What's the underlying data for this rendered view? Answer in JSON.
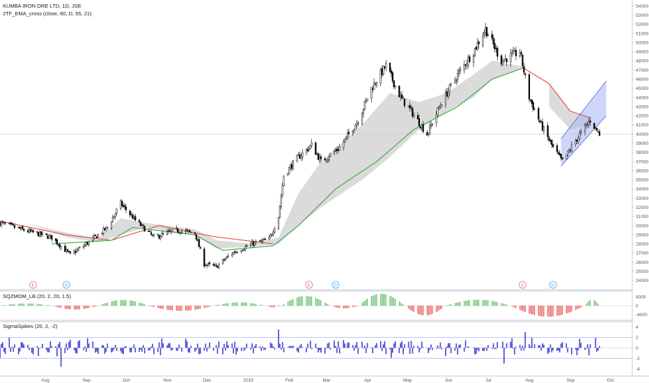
{
  "main_pane": {
    "symbol_title": "KUMBA IRON ORE LTD, 1D, JSE",
    "indicator_title": "2TF_EMA_cross (close, 60, D, 55, 21)"
  },
  "squeeze_pane": {
    "title": "SQZMOM_LB (20, 2, 20, 1.5)"
  },
  "sigma_pane": {
    "title": "SigmaSpikes (20, 2, -2)"
  },
  "colors": {
    "up_candle": "#ffffff",
    "down_candle": "#000000",
    "fast_ema": "#4caf50",
    "slow_ema": "#e53935",
    "ema_fill": "#c8c8c8",
    "channel_fill": "#aab4f5",
    "channel_line": "#5460e6",
    "sqz_up": "#4caf50",
    "sqz_down": "#e53935",
    "spikes": "#3f3fd0",
    "marker_e": "#e57373",
    "marker_d": "#42a5f5"
  },
  "chart_data": [
    {
      "type": "candlestick",
      "pane": "price",
      "y_axis_ticks": [
        24000,
        25000,
        26000,
        27000,
        28000,
        29000,
        30000,
        31000,
        32000,
        33000,
        34000,
        35000,
        36000,
        37000,
        38000,
        39000,
        40000,
        41000,
        42000,
        43000,
        44000,
        45000,
        46000,
        47000,
        48000,
        49000,
        50000,
        51000,
        52000,
        53000,
        54000
      ],
      "ylim": [
        23000,
        54500
      ],
      "x_axis_labels": [
        "Aug",
        "Sep",
        "Oct",
        "Nov",
        "Dec",
        "2019",
        "Feb",
        "Mar",
        "Apr",
        "May",
        "Jun",
        "Jul",
        "Aug",
        "Sep",
        "Oct"
      ],
      "x_axis_label_dates": [
        "2018-08-01",
        "2018-09-01",
        "2018-10-01",
        "2018-11-01",
        "2018-12-01",
        "2019-01-01",
        "2019-02-01",
        "2019-03-01",
        "2019-04-01",
        "2019-05-01",
        "2019-06-01",
        "2019-07-01",
        "2019-08-01",
        "2019-09-01",
        "2019-10-01"
      ],
      "horizontal_line": 40000,
      "price_path": [
        {
          "date": "2018-07-02",
          "close": 30300
        },
        {
          "date": "2018-07-20",
          "close": 29500
        },
        {
          "date": "2018-08-10",
          "close": 28700
        },
        {
          "date": "2018-08-24",
          "close": 26800
        },
        {
          "date": "2018-09-07",
          "close": 28200
        },
        {
          "date": "2018-09-21",
          "close": 29800
        },
        {
          "date": "2018-10-01",
          "close": 32400
        },
        {
          "date": "2018-10-12",
          "close": 30600
        },
        {
          "date": "2018-10-26",
          "close": 28700
        },
        {
          "date": "2018-11-12",
          "close": 29500
        },
        {
          "date": "2018-11-26",
          "close": 29200
        },
        {
          "date": "2018-12-03",
          "close": 25800
        },
        {
          "date": "2018-12-12",
          "close": 25500
        },
        {
          "date": "2018-12-24",
          "close": 27000
        },
        {
          "date": "2019-01-08",
          "close": 28000
        },
        {
          "date": "2019-01-21",
          "close": 28500
        },
        {
          "date": "2019-01-28",
          "close": 31000
        },
        {
          "date": "2019-02-01",
          "close": 35500
        },
        {
          "date": "2019-02-12",
          "close": 37500
        },
        {
          "date": "2019-02-22",
          "close": 38800
        },
        {
          "date": "2019-03-01",
          "close": 37000
        },
        {
          "date": "2019-03-15",
          "close": 38500
        },
        {
          "date": "2019-03-29",
          "close": 41500
        },
        {
          "date": "2019-04-08",
          "close": 45000
        },
        {
          "date": "2019-04-19",
          "close": 47500
        },
        {
          "date": "2019-04-30",
          "close": 44000
        },
        {
          "date": "2019-05-08",
          "close": 42500
        },
        {
          "date": "2019-05-20",
          "close": 40000
        },
        {
          "date": "2019-05-31",
          "close": 43500
        },
        {
          "date": "2019-06-12",
          "close": 46500
        },
        {
          "date": "2019-06-24",
          "close": 49000
        },
        {
          "date": "2019-07-03",
          "close": 51500
        },
        {
          "date": "2019-07-15",
          "close": 48000
        },
        {
          "date": "2019-07-29",
          "close": 49000
        },
        {
          "date": "2019-08-05",
          "close": 44000
        },
        {
          "date": "2019-08-14",
          "close": 41000
        },
        {
          "date": "2019-08-23",
          "close": 38500
        },
        {
          "date": "2019-08-30",
          "close": 37000
        },
        {
          "date": "2019-09-10",
          "close": 39500
        },
        {
          "date": "2019-09-20",
          "close": 41500
        },
        {
          "date": "2019-09-27",
          "close": 40000
        }
      ],
      "fast_ema_path": [
        {
          "date": "2018-08-10",
          "value": 28000
        },
        {
          "date": "2018-09-24",
          "value": 28400
        },
        {
          "date": "2018-10-10",
          "value": 29800
        },
        {
          "date": "2018-11-26",
          "value": 29000
        },
        {
          "date": "2018-12-17",
          "value": 27300
        },
        {
          "date": "2019-01-24",
          "value": 27800
        },
        {
          "date": "2019-02-12",
          "value": 30000
        },
        {
          "date": "2019-03-12",
          "value": 34000
        },
        {
          "date": "2019-04-12",
          "value": 37000
        },
        {
          "date": "2019-05-10",
          "value": 40500
        },
        {
          "date": "2019-06-12",
          "value": 43000
        },
        {
          "date": "2019-07-08",
          "value": 46000
        },
        {
          "date": "2019-07-31",
          "value": 47200
        }
      ],
      "slow_ema_path": [
        {
          "date": "2018-07-02",
          "value": 30500
        },
        {
          "date": "2018-08-20",
          "value": 29000
        },
        {
          "date": "2018-09-24",
          "value": 28400
        },
        {
          "date": "2018-10-30",
          "value": 30000
        },
        {
          "date": "2018-12-10",
          "value": 28800
        },
        {
          "date": "2019-01-24",
          "value": 28000
        },
        {
          "date": "2019-08-01",
          "value": 47200
        },
        {
          "date": "2019-08-20",
          "value": 45500
        },
        {
          "date": "2019-09-05",
          "value": 42500
        },
        {
          "date": "2019-09-20",
          "value": 41800
        }
      ],
      "ema_fill_bands": [
        {
          "upper": [
            {
              "date": "2018-07-23",
              "value": 30200
            },
            {
              "date": "2018-08-22",
              "value": 29200
            },
            {
              "date": "2018-09-14",
              "value": 28600
            },
            {
              "date": "2018-10-01",
              "value": 30800
            },
            {
              "date": "2018-10-20",
              "value": 30300
            },
            {
              "date": "2018-11-26",
              "value": 29600
            },
            {
              "date": "2018-12-12",
              "value": 28400
            },
            {
              "date": "2019-01-08",
              "value": 28000
            },
            {
              "date": "2019-01-28",
              "value": 28700
            },
            {
              "date": "2019-02-12",
              "value": 33500
            },
            {
              "date": "2019-03-01",
              "value": 37000
            },
            {
              "date": "2019-04-01",
              "value": 41000
            },
            {
              "date": "2019-04-22",
              "value": 44500
            },
            {
              "date": "2019-05-14",
              "value": 43500
            },
            {
              "date": "2019-06-04",
              "value": 44500
            },
            {
              "date": "2019-06-24",
              "value": 46500
            },
            {
              "date": "2019-07-08",
              "value": 48000
            },
            {
              "date": "2019-07-31",
              "value": 47400
            }
          ],
          "lower": [
            {
              "date": "2018-07-23",
              "value": 30200
            },
            {
              "date": "2018-08-22",
              "value": 28700
            },
            {
              "date": "2018-09-14",
              "value": 28200
            },
            {
              "date": "2018-10-01",
              "value": 29000
            },
            {
              "date": "2018-10-20",
              "value": 29800
            },
            {
              "date": "2018-11-26",
              "value": 29000
            },
            {
              "date": "2018-12-12",
              "value": 27500
            },
            {
              "date": "2019-01-08",
              "value": 27700
            },
            {
              "date": "2019-01-28",
              "value": 28000
            },
            {
              "date": "2019-02-12",
              "value": 30000
            },
            {
              "date": "2019-03-01",
              "value": 32000
            },
            {
              "date": "2019-04-01",
              "value": 35000
            },
            {
              "date": "2019-04-22",
              "value": 37500
            },
            {
              "date": "2019-05-14",
              "value": 40500
            },
            {
              "date": "2019-06-04",
              "value": 42500
            },
            {
              "date": "2019-06-24",
              "value": 44000
            },
            {
              "date": "2019-07-08",
              "value": 46000
            },
            {
              "date": "2019-07-31",
              "value": 47200
            }
          ]
        },
        {
          "upper": [
            {
              "date": "2019-08-20",
              "value": 45500
            },
            {
              "date": "2019-09-05",
              "value": 42500
            },
            {
              "date": "2019-09-20",
              "value": 41800
            }
          ],
          "lower": [
            {
              "date": "2019-08-20",
              "value": 43000
            },
            {
              "date": "2019-09-05",
              "value": 40500
            },
            {
              "date": "2019-09-20",
              "value": 41000
            }
          ]
        }
      ],
      "channel": {
        "upper": [
          {
            "date": "2019-08-29",
            "value": 39500
          },
          {
            "date": "2019-10-02",
            "value": 45800
          }
        ],
        "lower": [
          {
            "date": "2019-08-29",
            "value": 36500
          },
          {
            "date": "2019-10-02",
            "value": 42000
          }
        ]
      },
      "markers": [
        {
          "label": "E",
          "date": "2018-07-27",
          "kind": "E"
        },
        {
          "label": "D",
          "date": "2018-08-21",
          "kind": "D"
        },
        {
          "label": "E",
          "date": "2019-02-20",
          "kind": "E"
        },
        {
          "label": "D",
          "date": "2019-03-12",
          "kind": "D"
        },
        {
          "label": "E",
          "date": "2019-07-31",
          "kind": "E"
        },
        {
          "label": "D",
          "date": "2019-08-23",
          "kind": "D"
        }
      ]
    },
    {
      "type": "histogram",
      "pane": "squeeze_momentum",
      "y_axis_ticks": [
        4000,
        0,
        -4000
      ],
      "ylim": [
        -6500,
        6500
      ],
      "waves": [
        {
          "from": "2018-07-02",
          "to": "2018-08-10",
          "peak": 1000
        },
        {
          "from": "2018-08-10",
          "to": "2018-09-14",
          "peak": -1700
        },
        {
          "from": "2018-09-14",
          "to": "2018-10-22",
          "peak": 2600
        },
        {
          "from": "2018-10-22",
          "to": "2018-12-10",
          "peak": -2300
        },
        {
          "from": "2018-12-10",
          "to": "2019-01-18",
          "peak": 1500
        },
        {
          "from": "2019-01-18",
          "to": "2019-01-30",
          "peak": -700
        },
        {
          "from": "2019-01-30",
          "to": "2019-03-08",
          "peak": 4300
        },
        {
          "from": "2019-03-08",
          "to": "2019-03-29",
          "peak": -1200
        },
        {
          "from": "2019-03-29",
          "to": "2019-05-03",
          "peak": 5300
        },
        {
          "from": "2019-05-03",
          "to": "2019-06-03",
          "peak": -4300
        },
        {
          "from": "2019-06-03",
          "to": "2019-07-22",
          "peak": 2700
        },
        {
          "from": "2019-07-22",
          "to": "2019-09-16",
          "peak": -4900
        },
        {
          "from": "2019-09-16",
          "to": "2019-09-27",
          "peak": 2800
        }
      ]
    },
    {
      "type": "histogram",
      "pane": "sigma_spikes",
      "y_axis_ticks": [
        4,
        2,
        0,
        -2,
        -4
      ],
      "ylim": [
        -5,
        5
      ],
      "threshold_lines": [
        2,
        -2
      ],
      "big_spikes": [
        {
          "date": "2018-08-17",
          "value": -3.6
        },
        {
          "date": "2019-01-28",
          "value": 3.5
        },
        {
          "date": "2019-07-17",
          "value": -3.0
        },
        {
          "date": "2019-08-02",
          "value": 3.0
        },
        {
          "date": "2019-09-24",
          "value": 1.9
        }
      ]
    }
  ]
}
